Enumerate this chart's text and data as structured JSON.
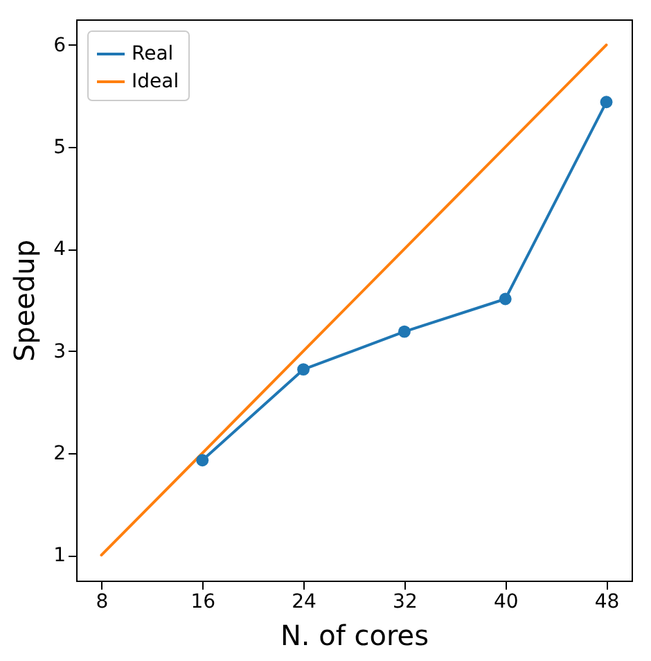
{
  "chart_data": {
    "type": "line",
    "xlabel": "N. of cores",
    "ylabel": "Speedup",
    "xlim": [
      6,
      50
    ],
    "xticks": [
      8,
      16,
      24,
      32,
      40,
      48
    ],
    "ylim": [
      0.75,
      6.25
    ],
    "yticks": [
      1,
      2,
      3,
      4,
      5,
      6
    ],
    "grid": false,
    "legend": "top left",
    "line_style": "solid",
    "series": [
      {
        "name": "Real",
        "color": "#1f77b4",
        "marker": "circle",
        "x": [
          16,
          24,
          32,
          40,
          48
        ],
        "values": [
          1.93,
          2.82,
          3.19,
          3.51,
          5.44
        ]
      },
      {
        "name": "Ideal",
        "color": "#ff7f0e",
        "marker": "none",
        "x": [
          8,
          48
        ],
        "values": [
          1,
          6
        ]
      }
    ]
  }
}
